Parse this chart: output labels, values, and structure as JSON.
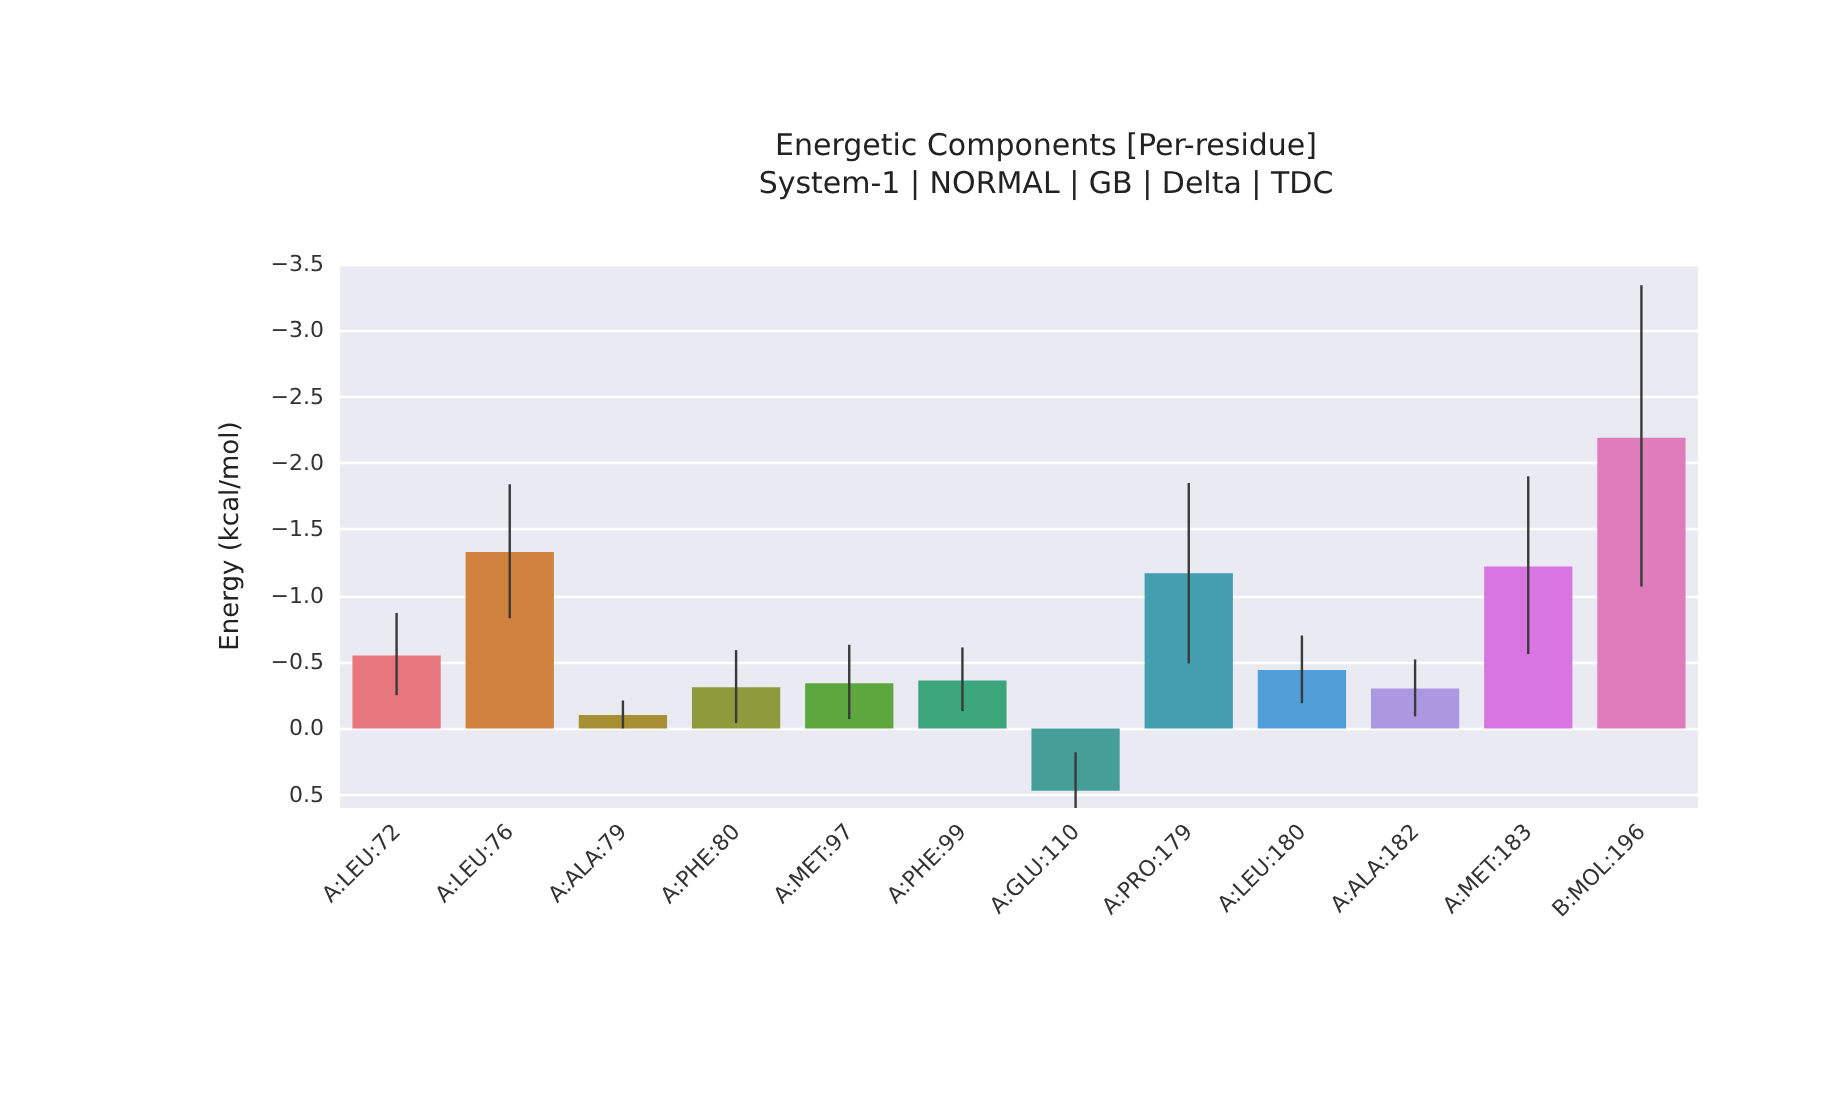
{
  "chart_data": {
    "type": "bar",
    "title": "Energetic Components [Per-residue]",
    "subtitle": "System-1 | NORMAL | GB | Delta | TDC",
    "ylabel": "Energy (kcal/mol)",
    "categories": [
      "A:LEU:72",
      "A:LEU:76",
      "A:ALA:79",
      "A:PHE:80",
      "A:MET:97",
      "A:PHE:99",
      "A:GLU:110",
      "A:PRO:179",
      "A:LEU:180",
      "A:ALA:182",
      "A:MET:183",
      "B:MOL:196"
    ],
    "values": [
      -0.55,
      -1.33,
      -0.1,
      -0.31,
      -0.34,
      -0.36,
      0.47,
      -1.17,
      -0.44,
      -0.3,
      -1.22,
      -2.19
    ],
    "errors": [
      [
        -0.87,
        -0.25
      ],
      [
        -1.84,
        -0.83
      ],
      [
        -0.21,
        0.0
      ],
      [
        -0.59,
        -0.04
      ],
      [
        -0.63,
        -0.07
      ],
      [
        -0.61,
        -0.13
      ],
      [
        0.18,
        0.6
      ],
      [
        -1.85,
        -0.49
      ],
      [
        -0.7,
        -0.19
      ],
      [
        -0.52,
        -0.09
      ],
      [
        -1.9,
        -0.56
      ],
      [
        -3.34,
        -1.07
      ]
    ],
    "colors": [
      "#e7767f",
      "#d0823e",
      "#a79033",
      "#8e9a3c",
      "#5ca83f",
      "#3ba57c",
      "#469e98",
      "#439eb0",
      "#529ed8",
      "#ac98e0",
      "#d876e1",
      "#e07cbc"
    ],
    "ylim": [
      0.6,
      -3.5
    ],
    "yticks": [
      {
        "value": -3.5,
        "label": "−3.5"
      },
      {
        "value": -3.0,
        "label": "−3.0"
      },
      {
        "value": -2.5,
        "label": "−2.5"
      },
      {
        "value": -2.0,
        "label": "−2.0"
      },
      {
        "value": -1.5,
        "label": "−1.5"
      },
      {
        "value": -1.0,
        "label": "−1.0"
      },
      {
        "value": -0.5,
        "label": "−0.5"
      },
      {
        "value": 0.0,
        "label": "0.0"
      },
      {
        "value": 0.5,
        "label": "0.5"
      }
    ],
    "grid": "y"
  }
}
